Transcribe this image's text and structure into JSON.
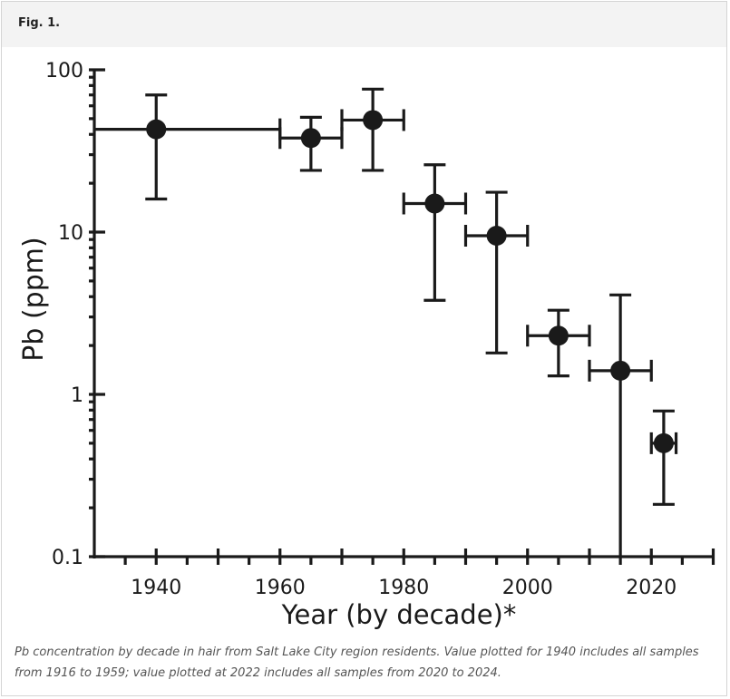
{
  "figure_label": "Fig. 1.",
  "caption": "Pb concentration by decade in hair from Salt Lake City region residents. Value plotted for 1940 includes all samples from 1916 to 1959; value plotted at 2022 includes all samples from 2020 to 2024.",
  "chart_data": {
    "type": "scatter",
    "title": "",
    "xlabel": "Year (by decade)*",
    "ylabel": "Pb (ppm)",
    "xlim": [
      1930,
      2030
    ],
    "ylim": [
      0.1,
      100
    ],
    "yscale": "log",
    "x_ticks": [
      1940,
      1960,
      1980,
      2000,
      2020
    ],
    "y_ticks": [
      0.1,
      1,
      10,
      100
    ],
    "y_tick_labels": [
      "0.1",
      "1",
      "10",
      "100"
    ],
    "grid": false,
    "color": "#1a1a1a",
    "points": [
      {
        "x": 1940,
        "y": 43,
        "y_low": 16,
        "y_high": 70,
        "x_low": 1930,
        "x_high": 1960
      },
      {
        "x": 1965,
        "y": 38,
        "y_low": 24,
        "y_high": 51,
        "x_low": 1960,
        "x_high": 1970
      },
      {
        "x": 1975,
        "y": 49,
        "y_low": 24,
        "y_high": 76,
        "x_low": 1970,
        "x_high": 1980
      },
      {
        "x": 1985,
        "y": 15,
        "y_low": 3.8,
        "y_high": 26,
        "x_low": 1980,
        "x_high": 1990
      },
      {
        "x": 1995,
        "y": 9.5,
        "y_low": 1.8,
        "y_high": 17.6,
        "x_low": 1990,
        "x_high": 2000
      },
      {
        "x": 2005,
        "y": 2.3,
        "y_low": 1.3,
        "y_high": 3.3,
        "x_low": 2000,
        "x_high": 2010
      },
      {
        "x": 2015,
        "y": 1.4,
        "y_low": 0.1,
        "y_high": 4.1,
        "x_low": 2010,
        "x_high": 2020
      },
      {
        "x": 2022,
        "y": 0.5,
        "y_low": 0.21,
        "y_high": 0.79,
        "x_low": 2020,
        "x_high": 2024
      }
    ]
  }
}
